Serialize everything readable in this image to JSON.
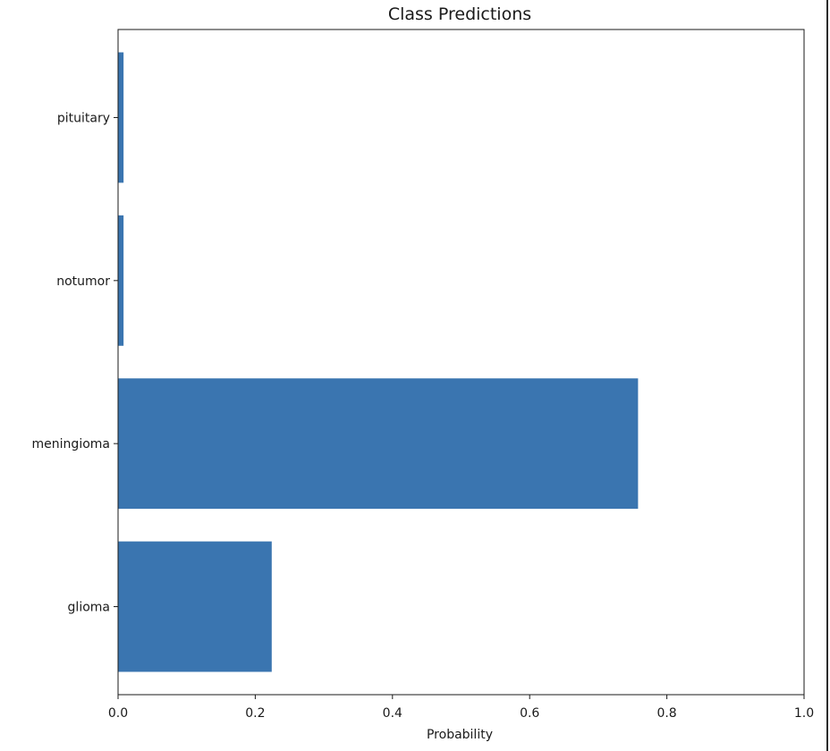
{
  "chart_data": {
    "type": "bar",
    "orientation": "horizontal",
    "title": "Class Predictions",
    "xlabel": "Probability",
    "ylabel": "",
    "categories": [
      "glioma",
      "meningioma",
      "notumor",
      "pituitary"
    ],
    "values": [
      0.224,
      0.758,
      0.008,
      0.008
    ],
    "xlim": [
      0.0,
      1.0
    ],
    "xticks": [
      "0.0",
      "0.2",
      "0.4",
      "0.6",
      "0.8",
      "1.0"
    ],
    "grid": false,
    "legend": "none",
    "bar_color": "#3a75b0"
  }
}
